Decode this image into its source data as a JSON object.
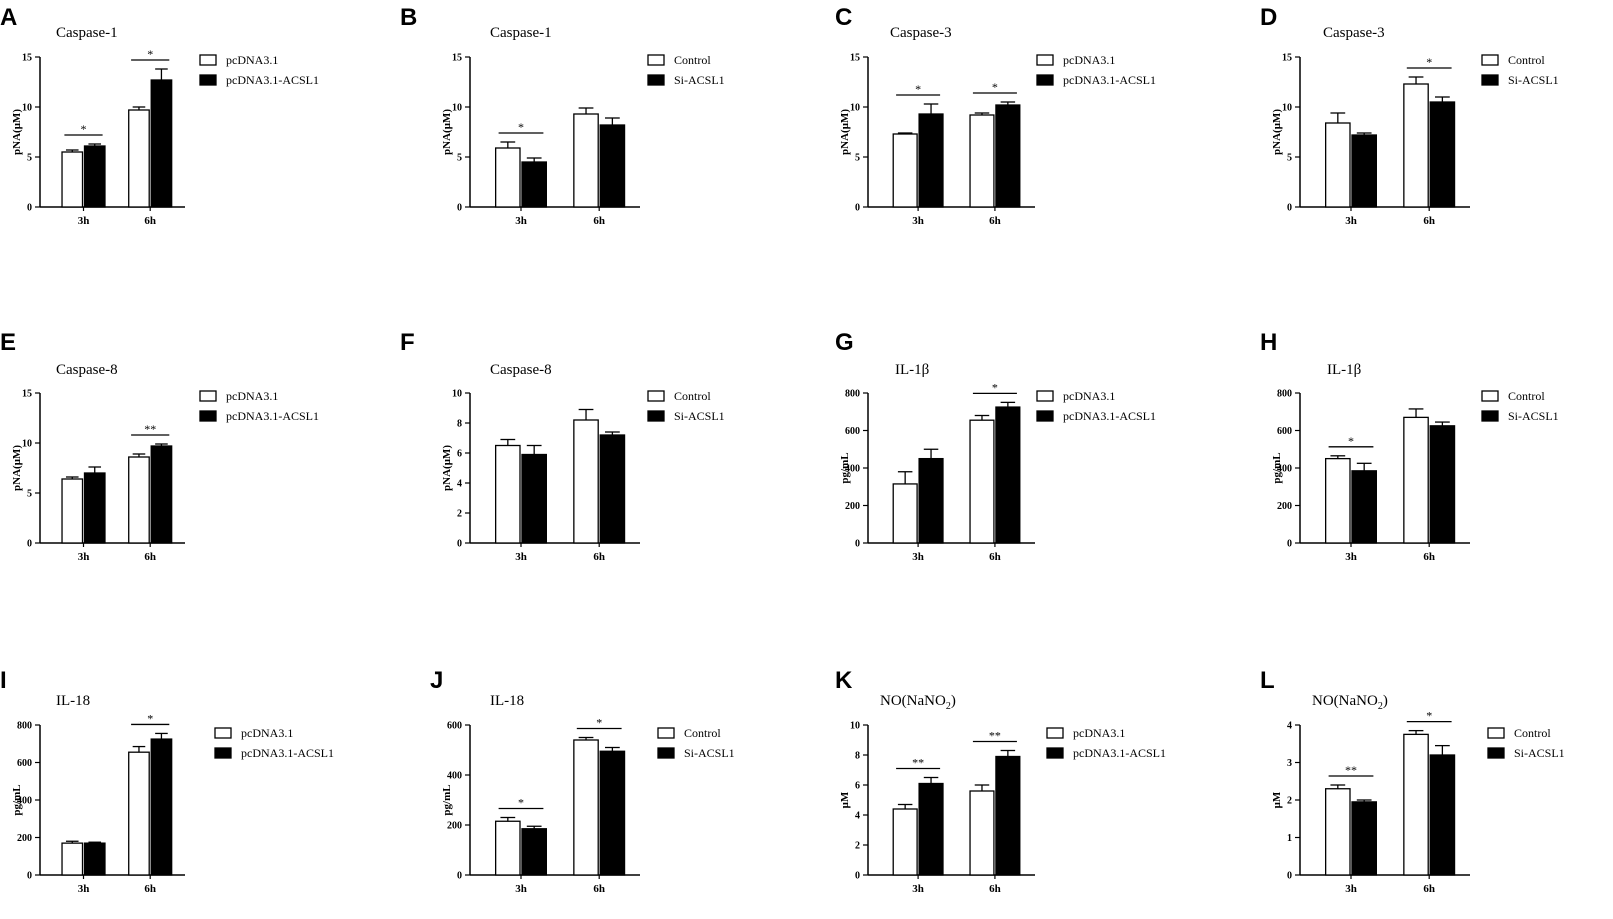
{
  "chart_data": [
    {
      "letter": "A",
      "type": "bar",
      "title": "Caspase-1",
      "title_sub": "",
      "ylabel": "pNA(μM)",
      "ylim": [
        0,
        15
      ],
      "yticks": [
        0,
        5,
        10,
        15
      ],
      "categories": [
        "3h",
        "6h"
      ],
      "series": [
        {
          "name": "pcDNA3.1",
          "values": [
            5.5,
            9.7
          ],
          "errors": [
            0.2,
            0.3
          ],
          "fill": "#ffffff"
        },
        {
          "name": "pcDNA3.1-ACSL1",
          "values": [
            6.1,
            12.7
          ],
          "errors": [
            0.2,
            1.1
          ],
          "fill": "#000000"
        }
      ],
      "annotations": [
        {
          "category": 0,
          "label": "*"
        },
        {
          "category": 1,
          "label": "*"
        }
      ]
    },
    {
      "letter": "B",
      "type": "bar",
      "title": "Caspase-1",
      "title_sub": "",
      "ylabel": "pNA(μM)",
      "ylim": [
        0,
        15
      ],
      "yticks": [
        0,
        5,
        10,
        15
      ],
      "categories": [
        "3h",
        "6h"
      ],
      "series": [
        {
          "name": "Control",
          "values": [
            5.9,
            9.3
          ],
          "errors": [
            0.6,
            0.6
          ],
          "fill": "#ffffff"
        },
        {
          "name": "Si-ACSL1",
          "values": [
            4.5,
            8.2
          ],
          "errors": [
            0.4,
            0.7
          ],
          "fill": "#000000"
        }
      ],
      "annotations": [
        {
          "category": 0,
          "label": "*"
        }
      ]
    },
    {
      "letter": "C",
      "type": "bar",
      "title": "Caspase-3",
      "title_sub": "",
      "ylabel": "pNA(μM)",
      "ylim": [
        0,
        15
      ],
      "yticks": [
        0,
        5,
        10,
        15
      ],
      "categories": [
        "3h",
        "6h"
      ],
      "series": [
        {
          "name": "pcDNA3.1",
          "values": [
            7.3,
            9.2
          ],
          "errors": [
            0.1,
            0.2
          ],
          "fill": "#ffffff"
        },
        {
          "name": "pcDNA3.1-ACSL1",
          "values": [
            9.3,
            10.2
          ],
          "errors": [
            1.0,
            0.3
          ],
          "fill": "#000000"
        }
      ],
      "annotations": [
        {
          "category": 0,
          "label": "*"
        },
        {
          "category": 1,
          "label": "*"
        }
      ]
    },
    {
      "letter": "D",
      "type": "bar",
      "title": "Caspase-3",
      "title_sub": "",
      "ylabel": "pNA(μM)",
      "ylim": [
        0,
        15
      ],
      "yticks": [
        0,
        5,
        10,
        15
      ],
      "categories": [
        "3h",
        "6h"
      ],
      "series": [
        {
          "name": "Control",
          "values": [
            8.4,
            12.3
          ],
          "errors": [
            1.0,
            0.7
          ],
          "fill": "#ffffff"
        },
        {
          "name": "Si-ACSL1",
          "values": [
            7.2,
            10.5
          ],
          "errors": [
            0.2,
            0.5
          ],
          "fill": "#000000"
        }
      ],
      "annotations": [
        {
          "category": 1,
          "label": "*"
        }
      ]
    },
    {
      "letter": "E",
      "type": "bar",
      "title": "Caspase-8",
      "title_sub": "",
      "ylabel": "pNA(μM)",
      "ylim": [
        0,
        15
      ],
      "yticks": [
        0,
        5,
        10,
        15
      ],
      "categories": [
        "3h",
        "6h"
      ],
      "series": [
        {
          "name": "pcDNA3.1",
          "values": [
            6.4,
            8.6
          ],
          "errors": [
            0.2,
            0.3
          ],
          "fill": "#ffffff"
        },
        {
          "name": "pcDNA3.1-ACSL1",
          "values": [
            7.0,
            9.7
          ],
          "errors": [
            0.6,
            0.2
          ],
          "fill": "#000000"
        }
      ],
      "annotations": [
        {
          "category": 1,
          "label": "**"
        }
      ]
    },
    {
      "letter": "F",
      "type": "bar",
      "title": "Caspase-8",
      "title_sub": "",
      "ylabel": "pNA(μM)",
      "ylim": [
        0,
        10
      ],
      "yticks": [
        0,
        2,
        4,
        6,
        8,
        10
      ],
      "categories": [
        "3h",
        "6h"
      ],
      "series": [
        {
          "name": "Control",
          "values": [
            6.5,
            8.2
          ],
          "errors": [
            0.4,
            0.7
          ],
          "fill": "#ffffff"
        },
        {
          "name": "Si-ACSL1",
          "values": [
            5.9,
            7.2
          ],
          "errors": [
            0.6,
            0.2
          ],
          "fill": "#000000"
        }
      ],
      "annotations": []
    },
    {
      "letter": "G",
      "type": "bar",
      "title": "IL-1β",
      "title_sub": "",
      "ylabel": "pg/mL",
      "ylim": [
        0,
        800
      ],
      "yticks": [
        0,
        200,
        400,
        600,
        800
      ],
      "categories": [
        "3h",
        "6h"
      ],
      "series": [
        {
          "name": "pcDNA3.1",
          "values": [
            315,
            655
          ],
          "errors": [
            65,
            25
          ],
          "fill": "#ffffff"
        },
        {
          "name": "pcDNA3.1-ACSL1",
          "values": [
            450,
            725
          ],
          "errors": [
            50,
            25
          ],
          "fill": "#000000"
        }
      ],
      "annotations": [
        {
          "category": 1,
          "label": "*"
        }
      ]
    },
    {
      "letter": "H",
      "type": "bar",
      "title": "IL-1β",
      "title_sub": "",
      "ylabel": "pg/mL",
      "ylim": [
        0,
        800
      ],
      "yticks": [
        0,
        200,
        400,
        600,
        800
      ],
      "categories": [
        "3h",
        "6h"
      ],
      "series": [
        {
          "name": "Control",
          "values": [
            450,
            670
          ],
          "errors": [
            15,
            45
          ],
          "fill": "#ffffff"
        },
        {
          "name": "Si-ACSL1",
          "values": [
            385,
            625
          ],
          "errors": [
            40,
            20
          ],
          "fill": "#000000"
        }
      ],
      "annotations": [
        {
          "category": 0,
          "label": "*"
        }
      ]
    },
    {
      "letter": "I",
      "type": "bar",
      "title": "IL-18",
      "title_sub": "",
      "ylabel": "pg/mL",
      "ylim": [
        0,
        800
      ],
      "yticks": [
        0,
        200,
        400,
        600,
        800
      ],
      "categories": [
        "3h",
        "6h"
      ],
      "series": [
        {
          "name": "pcDNA3.1",
          "values": [
            170,
            655
          ],
          "errors": [
            10,
            30
          ],
          "fill": "#ffffff"
        },
        {
          "name": "pcDNA3.1-ACSL1",
          "values": [
            170,
            725
          ],
          "errors": [
            5,
            30
          ],
          "fill": "#000000"
        }
      ],
      "annotations": [
        {
          "category": 1,
          "label": "*"
        }
      ]
    },
    {
      "letter": "J",
      "type": "bar",
      "title": "IL-18",
      "title_sub": "",
      "ylabel": "pg/mL",
      "ylim": [
        0,
        600
      ],
      "yticks": [
        0,
        200,
        400,
        600
      ],
      "categories": [
        "3h",
        "6h"
      ],
      "series": [
        {
          "name": "Control",
          "values": [
            215,
            540
          ],
          "errors": [
            15,
            10
          ],
          "fill": "#ffffff"
        },
        {
          "name": "Si-ACSL1",
          "values": [
            185,
            495
          ],
          "errors": [
            10,
            15
          ],
          "fill": "#000000"
        }
      ],
      "annotations": [
        {
          "category": 0,
          "label": "*"
        },
        {
          "category": 1,
          "label": "*"
        }
      ]
    },
    {
      "letter": "K",
      "type": "bar",
      "title": "NO(NaNO",
      "title_sub": "2",
      "title_end": ")",
      "ylabel": "μM",
      "ylim": [
        0,
        10
      ],
      "yticks": [
        0,
        2,
        4,
        6,
        8,
        10
      ],
      "categories": [
        "3h",
        "6h"
      ],
      "series": [
        {
          "name": "pcDNA3.1",
          "values": [
            4.4,
            5.6
          ],
          "errors": [
            0.3,
            0.4
          ],
          "fill": "#ffffff"
        },
        {
          "name": "pcDNA3.1-ACSL1",
          "values": [
            6.1,
            7.9
          ],
          "errors": [
            0.4,
            0.4
          ],
          "fill": "#000000"
        }
      ],
      "annotations": [
        {
          "category": 0,
          "label": "**"
        },
        {
          "category": 1,
          "label": "**"
        }
      ]
    },
    {
      "letter": "L",
      "type": "bar",
      "title": "NO(NaNO",
      "title_sub": "2",
      "title_end": ")",
      "ylabel": "μM",
      "ylim": [
        0,
        4
      ],
      "yticks": [
        0,
        1,
        2,
        3,
        4
      ],
      "categories": [
        "3h",
        "6h"
      ],
      "series": [
        {
          "name": "Control",
          "values": [
            2.3,
            3.75
          ],
          "errors": [
            0.1,
            0.1
          ],
          "fill": "#ffffff"
        },
        {
          "name": "Si-ACSL1",
          "values": [
            1.95,
            3.2
          ],
          "errors": [
            0.05,
            0.25
          ],
          "fill": "#000000"
        }
      ],
      "annotations": [
        {
          "category": 0,
          "label": "**"
        },
        {
          "category": 1,
          "label": "*"
        }
      ]
    }
  ]
}
